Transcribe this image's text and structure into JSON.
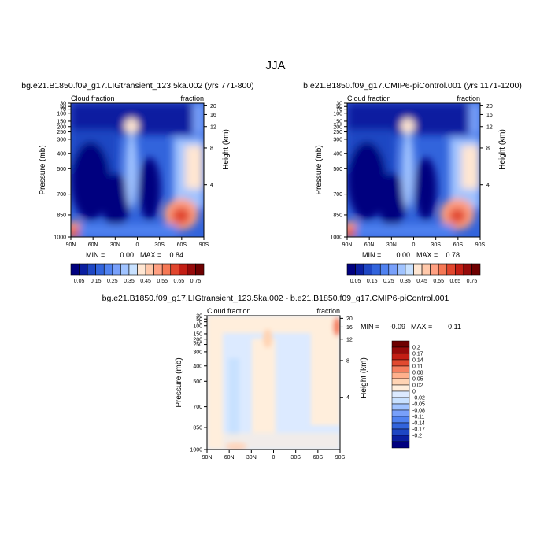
{
  "page": {
    "title": "JJA"
  },
  "colors": {
    "abs_levels": [
      "#00007f",
      "#0a1ea0",
      "#1e46c3",
      "#3264dc",
      "#5082f0",
      "#78a0fa",
      "#a0c3ff",
      "#c8e1ff",
      "#ffe6d2",
      "#ffc8aa",
      "#ffa082",
      "#f57855",
      "#e1462d",
      "#c31e14",
      "#960a0a",
      "#6e0000"
    ],
    "diff_levels": [
      "#00007f",
      "#0a1ea0",
      "#1e46c3",
      "#3264dc",
      "#5082f0",
      "#78a0fa",
      "#a0c3ff",
      "#c8e1ff",
      "#dceaff",
      "#ffeedc",
      "#ffd4b4",
      "#ffb08c",
      "#f58060",
      "#e14a30",
      "#c31e14",
      "#960a0a",
      "#6e0000"
    ]
  },
  "chart_data": [
    {
      "type": "heatmap",
      "title": "bg.e21.B1850.f09_g17.LIGtransient_123.5ka.002 (yrs 771-800)",
      "subtitle_left": "Cloud fraction",
      "subtitle_right": "fraction",
      "ylabel": "Pressure (mb)",
      "y2label": "Height (km)",
      "xticks": [
        "90N",
        "60N",
        "30N",
        "0",
        "30S",
        "60S",
        "90S"
      ],
      "yticks": [
        "30",
        "50",
        "70",
        "100",
        "150",
        "200",
        "250",
        "300",
        "400",
        "500",
        "700",
        "850",
        "1000"
      ],
      "y2ticks": [
        "20",
        "16",
        "12",
        "8",
        "4"
      ],
      "min_label": "MIN =",
      "min_value": "0.00",
      "max_label": "MAX =",
      "max_value": "0.84",
      "colorbar_labels": [
        "0.05",
        "0.15",
        "0.25",
        "0.35",
        "0.45",
        "0.55",
        "0.65",
        "0.75"
      ],
      "min": 0.0,
      "max": 0.84
    },
    {
      "type": "heatmap",
      "title": "b.e21.B1850.f09_g17.CMIP6-piControl.001 (yrs 1171-1200)",
      "subtitle_left": "Cloud fraction",
      "subtitle_right": "fraction",
      "ylabel": "Pressure (mb)",
      "y2label": "Height (km)",
      "xticks": [
        "90N",
        "60N",
        "30N",
        "0",
        "30S",
        "60S",
        "90S"
      ],
      "yticks": [
        "30",
        "50",
        "70",
        "100",
        "150",
        "200",
        "250",
        "300",
        "400",
        "500",
        "700",
        "850",
        "1000"
      ],
      "y2ticks": [
        "20",
        "16",
        "12",
        "8",
        "4"
      ],
      "min_label": "MIN =",
      "min_value": "0.00",
      "max_label": "MAX =",
      "max_value": "0.78",
      "colorbar_labels": [
        "0.05",
        "0.15",
        "0.25",
        "0.35",
        "0.45",
        "0.55",
        "0.65",
        "0.75"
      ],
      "min": 0.0,
      "max": 0.78
    },
    {
      "type": "heatmap",
      "title": "bg.e21.B1850.f09_g17.LIGtransient_123.5ka.002 - b.e21.B1850.f09_g17.CMIP6-piControl.001",
      "subtitle_left": "Cloud fraction",
      "subtitle_right": "fraction",
      "ylabel": "Pressure (mb)",
      "y2label": "Height (km)",
      "xticks": [
        "90N",
        "60N",
        "30N",
        "0",
        "30S",
        "60S",
        "90S"
      ],
      "yticks": [
        "30",
        "50",
        "70",
        "100",
        "150",
        "200",
        "250",
        "300",
        "400",
        "500",
        "700",
        "850",
        "1000"
      ],
      "y2ticks": [
        "20",
        "16",
        "12",
        "8",
        "4"
      ],
      "min_label": "MIN =",
      "min_value": "-0.09",
      "max_label": "MAX =",
      "max_value": "0.11",
      "colorbar_labels": [
        "0.2",
        "0.17",
        "0.14",
        "0.11",
        "0.08",
        "0.05",
        "0.02",
        "0",
        "-0.02",
        "-0.05",
        "-0.08",
        "-0.11",
        "-0.14",
        "-0.17",
        "-0.2"
      ],
      "min": -0.09,
      "max": 0.11
    }
  ]
}
